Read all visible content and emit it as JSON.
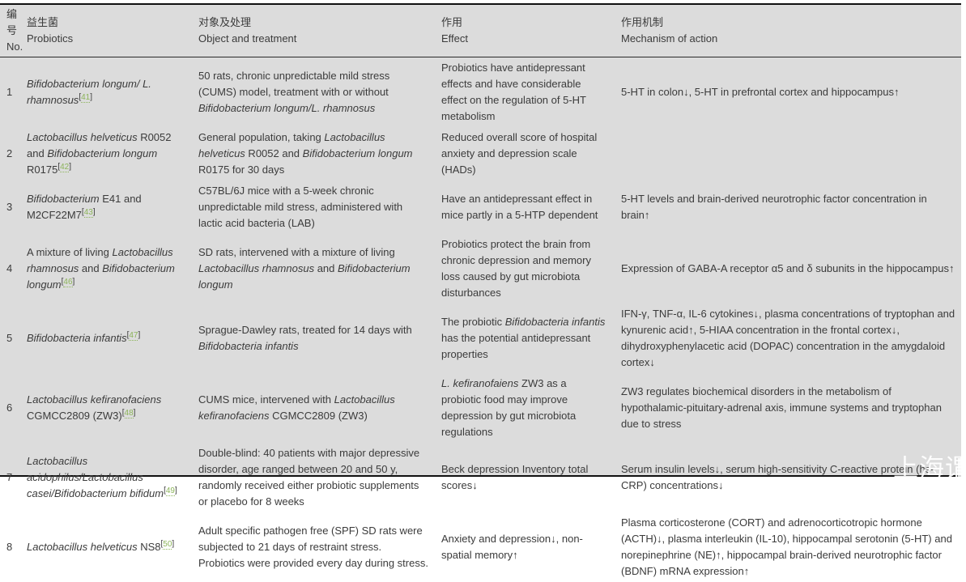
{
  "colors": {
    "table_background": "#dcdcdc",
    "text": "#3b3b3b",
    "border": "#111111",
    "reference_green": "#8cb45a",
    "watermark_white": "#ffffff"
  },
  "watermark": "上海谓",
  "table": {
    "columns": [
      {
        "zh": "编号",
        "en": "No."
      },
      {
        "zh": "益生菌",
        "en": "Probiotics"
      },
      {
        "zh": "对象及处理",
        "en": "Object and treatment"
      },
      {
        "zh": "作用",
        "en": "Effect"
      },
      {
        "zh": "作用机制",
        "en": "Mechanism of action"
      }
    ],
    "rows": [
      {
        "no": "1",
        "probiotics": [
          {
            "t": "Bifidobacterium longum/ L. rhamnosus",
            "i": true
          },
          {
            "r": "41"
          }
        ],
        "treatment": [
          {
            "t": "50 rats, chronic unpredictable mild stress (CUMS) model, treatment with or without "
          },
          {
            "t": "Bifidobacterium longum/L. rhamnosus",
            "i": true
          }
        ],
        "effect": [
          {
            "t": "Probiotics have antidepressant effects and have considerable effect on the regulation of 5-HT metabolism"
          }
        ],
        "mechanism": [
          {
            "t": "5-HT in colon↓, 5-HT in prefrontal cortex and hippocampus↑"
          }
        ]
      },
      {
        "no": "2",
        "probiotics": [
          {
            "t": "Lactobacillus helveticus",
            "i": true
          },
          {
            "t": " R0052 and "
          },
          {
            "t": "Bifidobacterium longum",
            "i": true
          },
          {
            "t": " R0175"
          },
          {
            "r": "42"
          }
        ],
        "treatment": [
          {
            "t": "General population, taking "
          },
          {
            "t": "Lactobacillus helveticus",
            "i": true
          },
          {
            "t": " R0052 and "
          },
          {
            "t": "Bifidobacterium longum",
            "i": true
          },
          {
            "t": " R0175 for 30 days"
          }
        ],
        "effect": [
          {
            "t": "Reduced overall score of hospital anxiety and depression scale (HADs)"
          }
        ],
        "mechanism": []
      },
      {
        "no": "3",
        "probiotics": [
          {
            "t": "Bifidobacterium",
            "i": true
          },
          {
            "t": " E41 and M2CF22M7"
          },
          {
            "r": "43"
          }
        ],
        "treatment": [
          {
            "t": "C57BL/6J mice with a 5-week chronic unpredictable mild stress, administered with lactic acid bacteria (LAB)"
          }
        ],
        "effect": [
          {
            "t": "Have an antidepressant effect in mice partly in a 5-HTP dependent"
          }
        ],
        "mechanism": [
          {
            "t": "5-HT levels and brain-derived neurotrophic factor concentration in brain↑"
          }
        ]
      },
      {
        "no": "4",
        "probiotics": [
          {
            "t": "A mixture of living "
          },
          {
            "t": "Lactobacillus rhamnosus",
            "i": true
          },
          {
            "t": " and "
          },
          {
            "t": "Bifidobacterium longum",
            "i": true
          },
          {
            "r": "46"
          }
        ],
        "treatment": [
          {
            "t": "SD rats, intervened with a mixture of living "
          },
          {
            "t": "Lactobacillus rhamnosus",
            "i": true
          },
          {
            "t": " and "
          },
          {
            "t": "Bifidobacterium longum",
            "i": true
          }
        ],
        "effect": [
          {
            "t": "Probiotics protect the brain from chronic depression and memory loss caused by gut microbiota disturbances"
          }
        ],
        "mechanism": [
          {
            "t": "Expression of GABA-A receptor α5 and δ subunits in the hippocampus↑"
          }
        ]
      },
      {
        "no": "5",
        "probiotics": [
          {
            "t": "Bifidobacteria infantis",
            "i": true
          },
          {
            "r": "47"
          }
        ],
        "treatment": [
          {
            "t": "Sprague-Dawley rats, treated for 14 days with "
          },
          {
            "t": "Bifidobacteria infantis",
            "i": true
          }
        ],
        "effect": [
          {
            "t": "The probiotic "
          },
          {
            "t": "Bifidobacteria infantis",
            "i": true
          },
          {
            "t": " has the potential antidepressant properties"
          }
        ],
        "mechanism": [
          {
            "t": "IFN-γ, TNF-α, IL-6 cytokines↓, plasma concentrations of tryptophan and kynurenic acid↑, 5-HIAA concentration in the frontal cortex↓, dihydroxyphenylacetic acid (DOPAC) concentration in the amygdaloid cortex↓"
          }
        ]
      },
      {
        "no": "6",
        "probiotics": [
          {
            "t": "Lactobacillus kefiranofaciens",
            "i": true
          },
          {
            "t": " CGMCC2809 (ZW3)"
          },
          {
            "r": "48"
          }
        ],
        "treatment": [
          {
            "t": "CUMS mice, intervened with "
          },
          {
            "t": "Lactobacillus kefiranofaciens",
            "i": true
          },
          {
            "t": " CGMCC2809 (ZW3)"
          }
        ],
        "effect": [
          {
            "t": "L. kefiranofaiens",
            "i": true
          },
          {
            "t": " ZW3 as a probiotic food may improve depression by gut microbiota regulations"
          }
        ],
        "mechanism": [
          {
            "t": "ZW3 regulates biochemical disorders in the metabolism of hypothalamic-pituitary-adrenal axis, immune systems and tryptophan due to stress"
          }
        ]
      },
      {
        "no": "7",
        "probiotics": [
          {
            "t": "Lactobacillus acidophilus/Lactobacillus casei/Bifidobacterium bifidum",
            "i": true
          },
          {
            "r": "49"
          }
        ],
        "treatment": [
          {
            "t": "Double-blind: 40 patients with major depressive disorder, age ranged between 20 and 50 y, randomly received either probiotic supplements or placebo for 8 weeks"
          }
        ],
        "effect": [
          {
            "t": "Beck depression Inventory total scores↓"
          }
        ],
        "mechanism": [
          {
            "t": "Serum insulin levels↓, serum high-sensitivity C-reactive protein (hs-CRP) concentrations↓"
          }
        ]
      },
      {
        "no": "8",
        "probiotics": [
          {
            "t": "Lactobacillus helveticus",
            "i": true
          },
          {
            "t": " NS8"
          },
          {
            "r": "50"
          }
        ],
        "treatment": [
          {
            "t": "Adult specific pathogen free (SPF) SD rats were subjected to 21 days of restraint stress. Probiotics were provided every day during stress."
          }
        ],
        "effect": [
          {
            "t": "Anxiety and depression↓, non-spatial memory↑"
          }
        ],
        "mechanism": [
          {
            "t": "Plasma corticosterone (CORT) and adrenocorticotropic hormone (ACTH)↓, plasma interleukin (IL-10), hippocampal serotonin (5-HT) and norepinephrine (NE)↑, hippocampal brain-derived neurotrophic factor (BDNF) mRNA expression↑"
          }
        ]
      }
    ]
  }
}
